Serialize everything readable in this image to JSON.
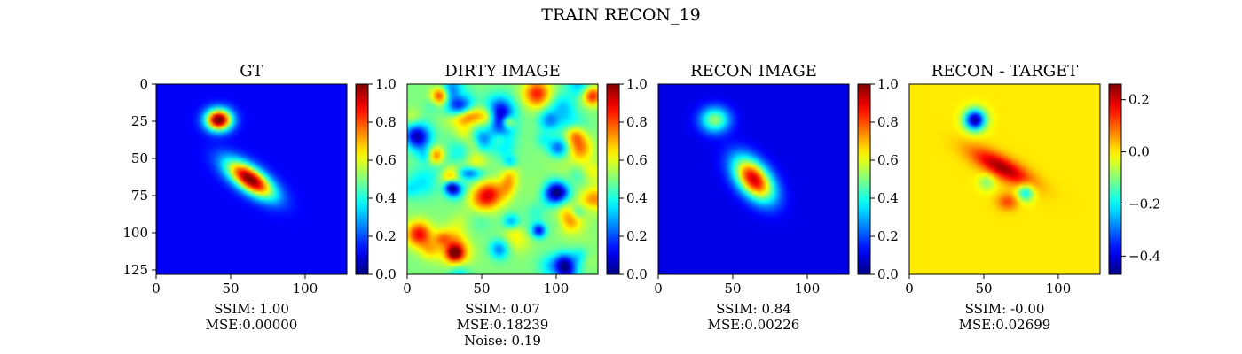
{
  "figure": {
    "suptitle": "TRAIN RECON_19"
  },
  "chart_data": [
    {
      "type": "heatmap",
      "title": "GT",
      "colormap": "jet",
      "image_size": [
        128,
        128
      ],
      "xlim": [
        0,
        128
      ],
      "ylim": [
        128,
        0
      ],
      "xticks": [
        0,
        50,
        100
      ],
      "yticks": [
        0,
        25,
        50,
        75,
        100,
        125
      ],
      "colorbar": {
        "range": [
          0.0,
          1.0
        ],
        "ticks": [
          "0.0",
          "0.2",
          "0.4",
          "0.6",
          "0.8",
          "1.0"
        ]
      },
      "background": 0.12,
      "sources": [
        {
          "x": 42,
          "y": 24,
          "peak": 0.95,
          "sx": 6,
          "sy": 5,
          "angle": 0
        },
        {
          "x": 63,
          "y": 64,
          "peak": 0.9,
          "sx": 13,
          "sy": 5.5,
          "angle": 35
        }
      ],
      "metrics": [
        "SSIM: 1.00",
        "MSE:0.00000"
      ]
    },
    {
      "type": "heatmap",
      "title": "DIRTY IMAGE",
      "colormap": "jet",
      "image_size": [
        128,
        128
      ],
      "xlim": [
        0,
        128
      ],
      "ylim": [
        128,
        0
      ],
      "xticks": [
        0,
        50,
        100
      ],
      "yticks": [],
      "colorbar": {
        "range": [
          0.0,
          1.0
        ],
        "ticks": [
          "0.0",
          "0.2",
          "0.4",
          "0.6",
          "0.8",
          "1.0"
        ]
      },
      "background": 0.5,
      "noise": 0.19,
      "sources": [
        {
          "x": 40,
          "y": 22,
          "peak": 0.32,
          "sx": 8,
          "sy": 4,
          "angle": -10
        },
        {
          "x": 45,
          "y": 40,
          "peak": 0.2,
          "sx": 4,
          "sy": 4,
          "angle": 0
        },
        {
          "x": 68,
          "y": 66,
          "peak": 0.22,
          "sx": 4,
          "sy": 8,
          "angle": 10
        },
        {
          "x": 100,
          "y": 72,
          "peak": -0.35,
          "sx": 5,
          "sy": 5,
          "angle": 0
        },
        {
          "x": 40,
          "y": 60,
          "peak": -0.3,
          "sx": 7,
          "sy": 3,
          "angle": 0
        }
      ],
      "metrics": [
        "SSIM: 0.07",
        "MSE:0.18239",
        "Noise: 0.19"
      ]
    },
    {
      "type": "heatmap",
      "title": "RECON IMAGE",
      "colormap": "jet",
      "image_size": [
        128,
        128
      ],
      "xlim": [
        0,
        128
      ],
      "ylim": [
        128,
        0
      ],
      "xticks": [
        0,
        50,
        100
      ],
      "yticks": [],
      "colorbar": {
        "range": [
          0.0,
          1.0
        ],
        "ticks": [
          "0.0",
          "0.2",
          "0.4",
          "0.6",
          "0.8",
          "1.0"
        ]
      },
      "background": 0.1,
      "sources": [
        {
          "x": 38,
          "y": 24,
          "peak": 0.42,
          "sx": 7,
          "sy": 6,
          "angle": 0
        },
        {
          "x": 64,
          "y": 64,
          "peak": 0.82,
          "sx": 12,
          "sy": 7,
          "angle": 50
        }
      ],
      "metrics": [
        "SSIM: 0.84",
        "MSE:0.00226"
      ]
    },
    {
      "type": "heatmap",
      "title": "RECON - TARGET",
      "colormap": "jet",
      "image_size": [
        128,
        128
      ],
      "xlim": [
        0,
        128
      ],
      "ylim": [
        128,
        0
      ],
      "xticks": [
        0,
        50,
        100
      ],
      "yticks": [],
      "colorbar": {
        "range": [
          -0.47,
          0.26
        ],
        "ticks": [
          "0.2",
          "0.0",
          "−0.2",
          "−0.4"
        ],
        "tick_values": [
          0.2,
          0.0,
          -0.2,
          -0.4
        ]
      },
      "background": 0.0,
      "sources": [
        {
          "x": 44,
          "y": 24,
          "peak": -0.45,
          "sx": 5,
          "sy": 5,
          "angle": 0
        },
        {
          "x": 62,
          "y": 56,
          "peak": 0.24,
          "sx": 16,
          "sy": 5,
          "angle": 28
        },
        {
          "x": 78,
          "y": 73,
          "peak": -0.22,
          "sx": 4,
          "sy": 4,
          "angle": 0
        },
        {
          "x": 66,
          "y": 79,
          "peak": 0.12,
          "sx": 5,
          "sy": 4,
          "angle": 0
        },
        {
          "x": 52,
          "y": 66,
          "peak": -0.1,
          "sx": 4,
          "sy": 4,
          "angle": 0
        }
      ],
      "metrics": [
        "SSIM: -0.00",
        "MSE:0.02699"
      ]
    }
  ]
}
